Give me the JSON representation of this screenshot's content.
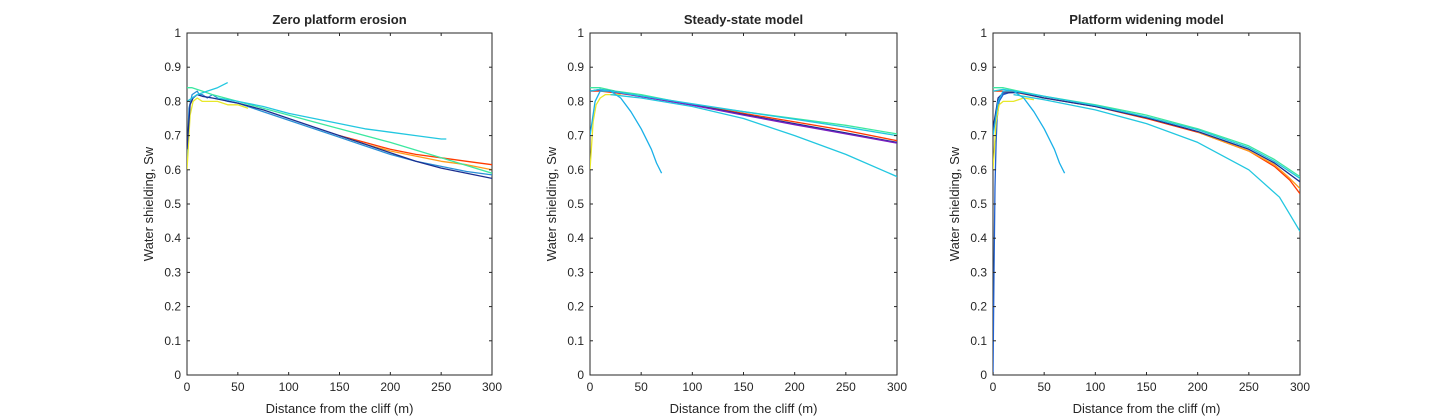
{
  "chart_data": [
    {
      "type": "line",
      "title": "Zero platform erosion",
      "xlabel": "Distance from the cliff (m)",
      "ylabel": "Water shielding, Sw",
      "xlim": [
        0,
        300
      ],
      "ylim": [
        0,
        1
      ],
      "xticks": [
        0,
        50,
        100,
        150,
        200,
        250,
        300
      ],
      "yticks": [
        0,
        0.1,
        0.2,
        0.3,
        0.4,
        0.5,
        0.6,
        0.7,
        0.8,
        0.9,
        1
      ],
      "grid": false,
      "legend": "none",
      "series": [
        {
          "color": "#2a8fd6",
          "x": [
            0,
            2,
            5,
            10,
            12,
            15,
            20,
            25,
            30,
            40,
            50,
            60,
            75,
            100,
            125,
            150,
            175,
            200,
            225,
            250,
            275,
            300
          ],
          "y": [
            0.63,
            0.78,
            0.82,
            0.83,
            0.82,
            0.82,
            0.81,
            0.82,
            0.81,
            0.8,
            0.795,
            0.785,
            0.77,
            0.745,
            0.72,
            0.695,
            0.67,
            0.645,
            0.625,
            0.61,
            0.595,
            0.585
          ]
        },
        {
          "color": "#e8e82a",
          "x": [
            0,
            3,
            6,
            10,
            15,
            20,
            30,
            40,
            50,
            60
          ],
          "y": [
            0.6,
            0.76,
            0.8,
            0.81,
            0.8,
            0.8,
            0.8,
            0.79,
            0.79,
            0.78
          ]
        },
        {
          "color": "#ff3a00",
          "x": [
            150,
            175,
            200,
            225,
            250,
            275,
            300
          ],
          "y": [
            0.7,
            0.68,
            0.66,
            0.645,
            0.635,
            0.625,
            0.615
          ]
        },
        {
          "color": "#ff9a1a",
          "x": [
            150,
            175,
            200,
            225,
            250,
            275,
            300
          ],
          "y": [
            0.7,
            0.675,
            0.655,
            0.64,
            0.625,
            0.615,
            0.6
          ]
        },
        {
          "color": "#3ce8a0",
          "x": [
            0,
            5,
            15,
            25,
            50,
            100,
            150,
            200,
            250,
            300
          ],
          "y": [
            0.84,
            0.84,
            0.83,
            0.82,
            0.8,
            0.76,
            0.72,
            0.68,
            0.635,
            0.59
          ]
        },
        {
          "color": "#1b2e90",
          "x": [
            0,
            3,
            6,
            10,
            15,
            25,
            50,
            75,
            100,
            125,
            150,
            175,
            200,
            225,
            250,
            275,
            300
          ],
          "y": [
            0.66,
            0.79,
            0.81,
            0.82,
            0.815,
            0.81,
            0.795,
            0.775,
            0.75,
            0.725,
            0.7,
            0.675,
            0.65,
            0.625,
            0.605,
            0.59,
            0.575
          ]
        },
        {
          "color": "#22c7e0",
          "x": [
            0,
            10,
            20,
            30,
            40
          ],
          "y": [
            0.8,
            0.82,
            0.83,
            0.84,
            0.855
          ]
        },
        {
          "color": "#22c7e0",
          "x": [
            30,
            50,
            75,
            100,
            125,
            150,
            175,
            200,
            225,
            250,
            255
          ],
          "y": [
            0.81,
            0.8,
            0.785,
            0.765,
            0.75,
            0.735,
            0.72,
            0.71,
            0.7,
            0.69,
            0.69
          ]
        }
      ]
    },
    {
      "type": "line",
      "title": "Steady-state model",
      "xlabel": "Distance from the cliff (m)",
      "ylabel": "Water shielding, Sw",
      "xlim": [
        0,
        300
      ],
      "ylim": [
        0,
        1
      ],
      "xticks": [
        0,
        50,
        100,
        150,
        200,
        250,
        300
      ],
      "yticks": [
        0,
        0.1,
        0.2,
        0.3,
        0.4,
        0.5,
        0.6,
        0.7,
        0.8,
        0.9,
        1
      ],
      "grid": false,
      "legend": "none",
      "series": [
        {
          "color": "#e8e82a",
          "x": [
            0,
            3,
            6,
            10,
            15,
            20,
            30
          ],
          "y": [
            0.6,
            0.74,
            0.79,
            0.81,
            0.82,
            0.82,
            0.82
          ]
        },
        {
          "color": "#3ce8a0",
          "x": [
            0,
            10,
            25,
            50,
            100,
            150,
            200,
            250,
            300
          ],
          "y": [
            0.84,
            0.84,
            0.83,
            0.82,
            0.79,
            0.77,
            0.75,
            0.73,
            0.705
          ]
        },
        {
          "color": "#ff3a00",
          "x": [
            0,
            10,
            25,
            50,
            100,
            150,
            200,
            250,
            300
          ],
          "y": [
            0.83,
            0.83,
            0.825,
            0.815,
            0.79,
            0.765,
            0.74,
            0.715,
            0.685
          ]
        },
        {
          "color": "#1b2e90",
          "x": [
            0,
            10,
            25,
            50,
            100,
            150,
            200,
            250,
            300
          ],
          "y": [
            0.83,
            0.835,
            0.828,
            0.815,
            0.79,
            0.762,
            0.735,
            0.708,
            0.68
          ]
        },
        {
          "color": "#7a1fc0",
          "x": [
            0,
            10,
            25,
            50,
            100,
            150,
            200,
            250,
            300
          ],
          "y": [
            0.83,
            0.834,
            0.827,
            0.814,
            0.789,
            0.76,
            0.732,
            0.705,
            0.678
          ]
        },
        {
          "color": "#22c7e0",
          "x": [
            0,
            10,
            25,
            50,
            100,
            150,
            200,
            250,
            300
          ],
          "y": [
            0.83,
            0.835,
            0.828,
            0.816,
            0.793,
            0.77,
            0.748,
            0.725,
            0.7
          ]
        },
        {
          "color": "#1ab0e8",
          "x": [
            0,
            5,
            10,
            20,
            30,
            40,
            50,
            60,
            65,
            70
          ],
          "y": [
            0.7,
            0.8,
            0.83,
            0.83,
            0.81,
            0.77,
            0.72,
            0.66,
            0.62,
            0.59
          ]
        },
        {
          "color": "#22c7e0",
          "x": [
            20,
            50,
            100,
            150,
            200,
            250,
            300
          ],
          "y": [
            0.82,
            0.81,
            0.785,
            0.75,
            0.7,
            0.645,
            0.58
          ]
        }
      ]
    },
    {
      "type": "line",
      "title": "Platform widening model",
      "xlabel": "Distance from the cliff (m)",
      "ylabel": "Water shielding, Sw",
      "xlim": [
        0,
        300
      ],
      "ylim": [
        0,
        1
      ],
      "xticks": [
        0,
        50,
        100,
        150,
        200,
        250,
        300
      ],
      "yticks": [
        0,
        0.1,
        0.2,
        0.3,
        0.4,
        0.5,
        0.6,
        0.7,
        0.8,
        0.9,
        1
      ],
      "grid": false,
      "legend": "none",
      "series": [
        {
          "color": "#2060d0",
          "x": [
            0,
            1,
            2,
            3,
            4,
            6,
            10,
            20,
            30
          ],
          "y": [
            0,
            0.3,
            0.55,
            0.68,
            0.75,
            0.8,
            0.82,
            0.83,
            0.825
          ]
        },
        {
          "color": "#e8e82a",
          "x": [
            0,
            3,
            6,
            10,
            15,
            20,
            30,
            40
          ],
          "y": [
            0.6,
            0.74,
            0.79,
            0.8,
            0.8,
            0.8,
            0.81,
            0.805
          ]
        },
        {
          "color": "#3ce8a0",
          "x": [
            0,
            10,
            25,
            50,
            100,
            150,
            200,
            250,
            275,
            300
          ],
          "y": [
            0.84,
            0.84,
            0.83,
            0.815,
            0.79,
            0.76,
            0.72,
            0.67,
            0.63,
            0.58
          ]
        },
        {
          "color": "#ff3a00",
          "x": [
            0,
            10,
            25,
            50,
            100,
            150,
            200,
            250,
            275,
            290,
            300
          ],
          "y": [
            0.83,
            0.83,
            0.825,
            0.81,
            0.785,
            0.75,
            0.71,
            0.655,
            0.61,
            0.57,
            0.53
          ]
        },
        {
          "color": "#ff9a1a",
          "x": [
            200,
            250,
            275,
            290,
            300
          ],
          "y": [
            0.71,
            0.655,
            0.615,
            0.575,
            0.545
          ]
        },
        {
          "color": "#1b2e90",
          "x": [
            0,
            5,
            10,
            25,
            50,
            100,
            150,
            200,
            250,
            275,
            300
          ],
          "y": [
            0.72,
            0.81,
            0.825,
            0.826,
            0.81,
            0.785,
            0.752,
            0.712,
            0.66,
            0.62,
            0.565
          ]
        },
        {
          "color": "#22c7e0",
          "x": [
            0,
            10,
            25,
            50,
            100,
            150,
            200,
            250,
            275,
            300
          ],
          "y": [
            0.83,
            0.835,
            0.828,
            0.815,
            0.788,
            0.755,
            0.717,
            0.665,
            0.625,
            0.575
          ]
        },
        {
          "color": "#1ab0e8",
          "x": [
            0,
            5,
            10,
            20,
            30,
            40,
            50,
            60,
            65,
            70
          ],
          "y": [
            0.7,
            0.8,
            0.83,
            0.83,
            0.81,
            0.77,
            0.72,
            0.66,
            0.62,
            0.59
          ]
        },
        {
          "color": "#22c7e0",
          "x": [
            20,
            50,
            100,
            150,
            200,
            250,
            280,
            290,
            300
          ],
          "y": [
            0.82,
            0.805,
            0.775,
            0.735,
            0.68,
            0.6,
            0.52,
            0.47,
            0.42
          ]
        }
      ]
    }
  ]
}
